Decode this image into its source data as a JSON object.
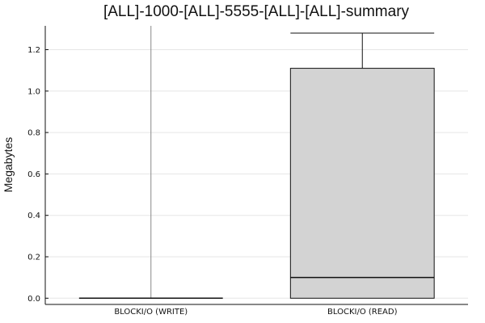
{
  "chart_data": {
    "type": "box",
    "title": "[ALL]-1000-[ALL]-5555-[ALL]-[ALL]-summary",
    "xlabel": "",
    "ylabel": "Megabytes",
    "ylim": [
      -0.03,
      1.315
    ],
    "yticks": [
      "0.0",
      "0.2",
      "0.4",
      "0.6",
      "0.8",
      "1.0",
      "1.2"
    ],
    "grid": true,
    "categories": [
      "BLOCKI/O (WRITE)",
      "BLOCKI/O (READ)"
    ],
    "boxes": [
      {
        "name": "BLOCKI/O (WRITE)",
        "whisker_low": 0.0,
        "q1": 0.0,
        "median": 0.0,
        "q3": 0.0,
        "whisker_high": 0.0,
        "extent": [
          0.0,
          1.315
        ]
      },
      {
        "name": "BLOCKI/O (READ)",
        "whisker_low": 0.0,
        "q1": 0.0,
        "median": 0.1,
        "q3": 1.11,
        "whisker_high": 1.28
      }
    ],
    "box_fill": "#d3d3d3",
    "line_color": "#111111"
  }
}
